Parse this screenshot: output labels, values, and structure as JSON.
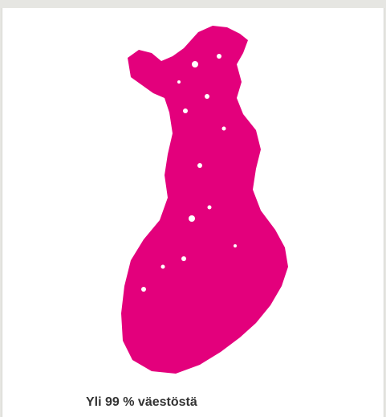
{
  "caption": "Yli 99 % väestöstä"
}
